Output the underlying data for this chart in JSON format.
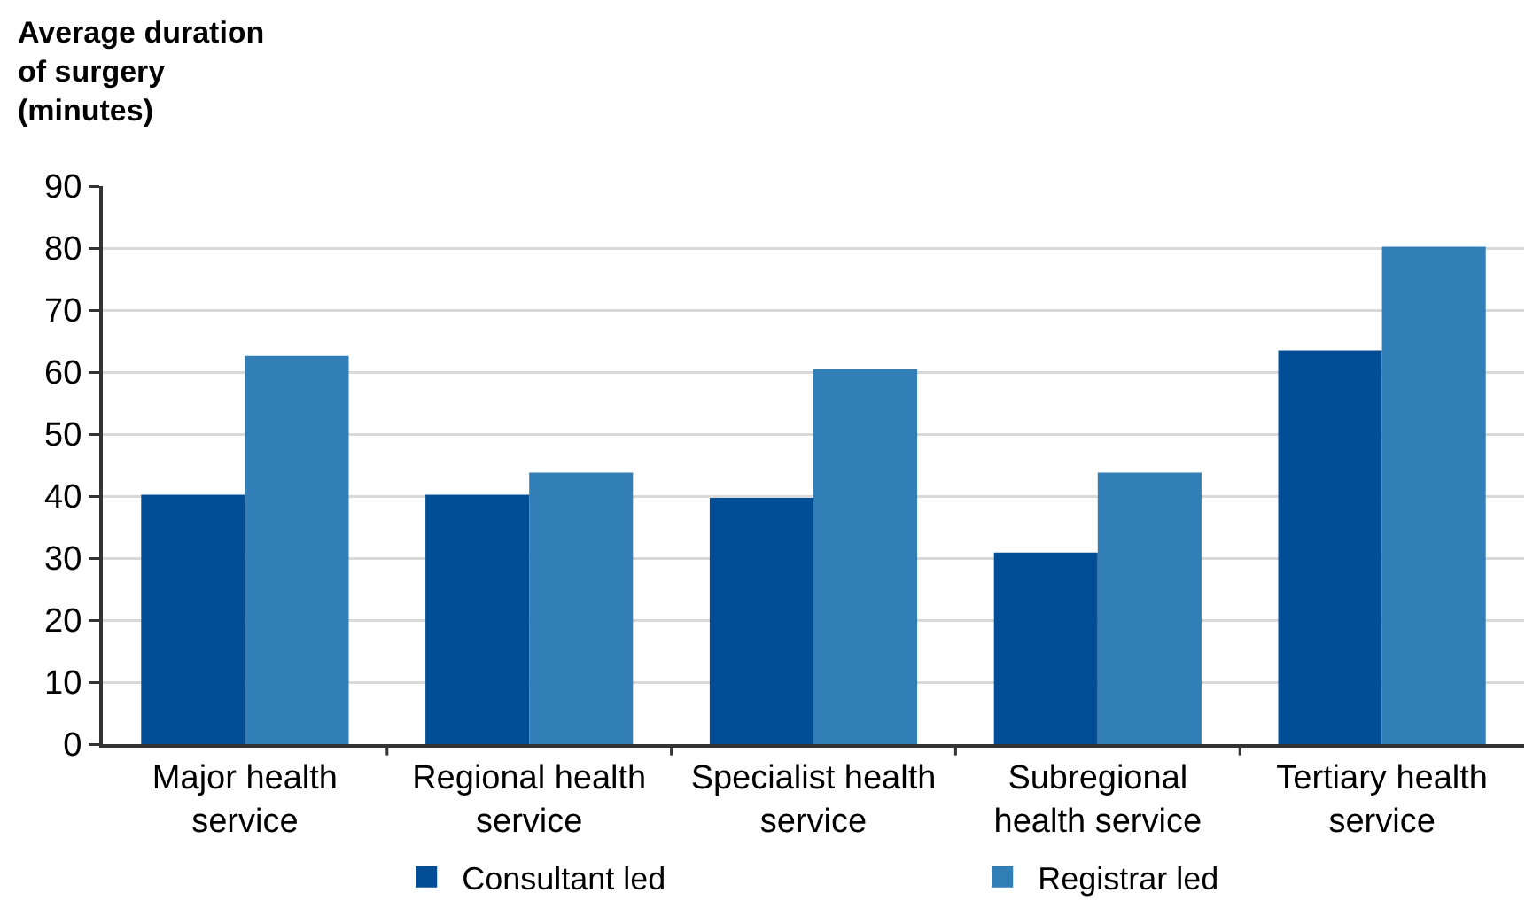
{
  "chart_data": {
    "type": "bar",
    "ylabel": "Average duration of surgery (minutes)",
    "categories": [
      "Major health service",
      "Regional health service",
      "Specialist health service",
      "Subregional health service",
      "Tertiary health service"
    ],
    "series": [
      {
        "name": "Consultant led",
        "color": "#024e96",
        "values": [
          40.2,
          40.2,
          39.7,
          30.9,
          63.5
        ]
      },
      {
        "name": "Registrar led",
        "color": "#327fb7",
        "values": [
          62.6,
          43.8,
          60.5,
          43.8,
          80.2
        ]
      }
    ],
    "ylim": [
      0,
      90
    ],
    "yticks": [
      0,
      10,
      20,
      30,
      40,
      50,
      60,
      70,
      80,
      90
    ],
    "grid": "y",
    "legend": "bottom"
  }
}
